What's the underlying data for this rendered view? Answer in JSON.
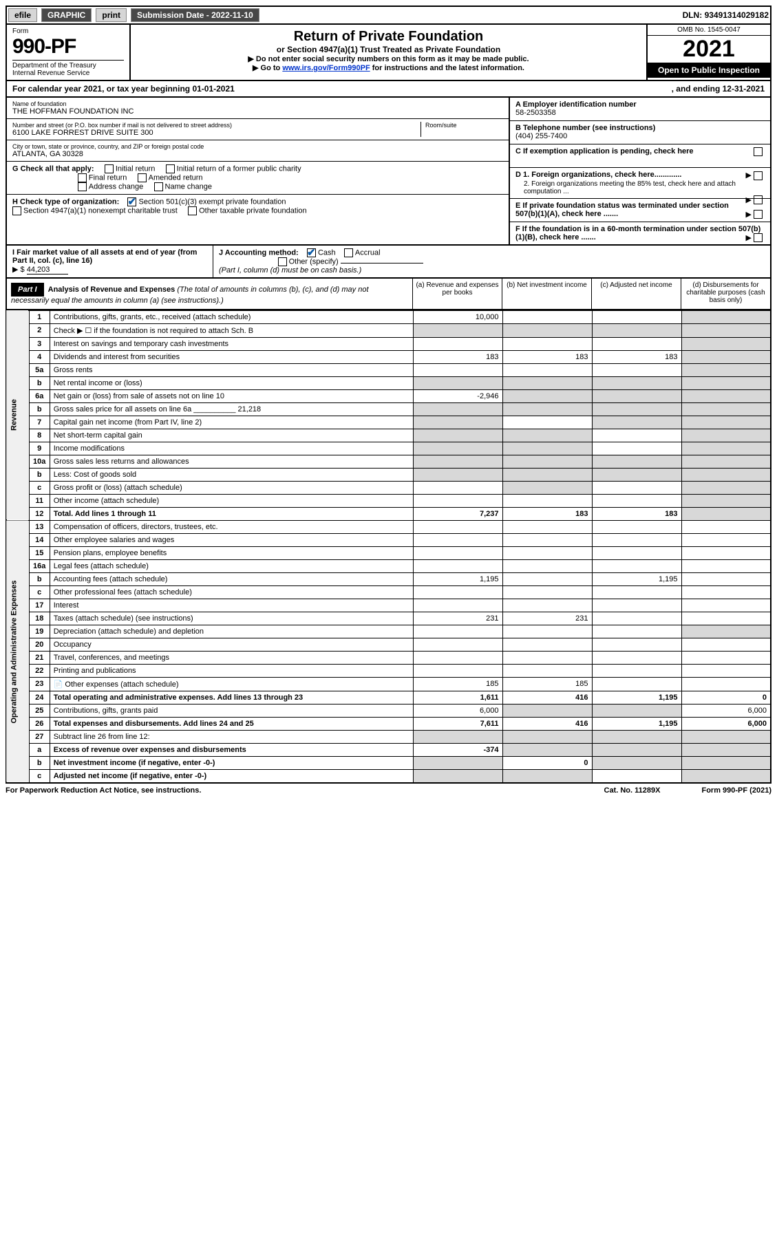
{
  "topbar": {
    "efile": "efile",
    "graphic": "GRAPHIC",
    "print": "print",
    "submission_label": "Submission Date - ",
    "submission_date": "2022-11-10",
    "dln_label": "DLN: ",
    "dln": "93491314029182"
  },
  "header": {
    "form_label": "Form",
    "form_number": "990-PF",
    "dept1": "Department of the Treasury",
    "dept2": "Internal Revenue Service",
    "title": "Return of Private Foundation",
    "subtitle": "or Section 4947(a)(1) Trust Treated as Private Foundation",
    "note1": "▶ Do not enter social security numbers on this form as it may be made public.",
    "note2_pre": "▶ Go to ",
    "note2_link": "www.irs.gov/Form990PF",
    "note2_post": " for instructions and the latest information.",
    "omb": "OMB No. 1545-0047",
    "year": "2021",
    "open": "Open to Public Inspection"
  },
  "cal": {
    "text": "For calendar year 2021, or tax year beginning 01-01-2021",
    "end": ", and ending 12-31-2021"
  },
  "entity": {
    "name_lbl": "Name of foundation",
    "name": "THE HOFFMAN FOUNDATION INC",
    "addr_lbl": "Number and street (or P.O. box number if mail is not delivered to street address)",
    "addr": "6100 LAKE FORREST DRIVE SUITE 300",
    "room_lbl": "Room/suite",
    "city_lbl": "City or town, state or province, country, and ZIP or foreign postal code",
    "city": "ATLANTA, GA  30328",
    "ein_lbl": "A Employer identification number",
    "ein": "58-2503358",
    "tel_lbl": "B Telephone number (see instructions)",
    "tel": "(404) 255-7400",
    "c_lbl": "C If exemption application is pending, check here",
    "d1": "D 1. Foreign organizations, check here.............",
    "d2": "2. Foreign organizations meeting the 85% test, check here and attach computation ...",
    "e_lbl": "E If private foundation status was terminated under section 507(b)(1)(A), check here .......",
    "f_lbl": "F If the foundation is in a 60-month termination under section 507(b)(1)(B), check here ......."
  },
  "g": {
    "lbl": "G Check all that apply:",
    "initial": "Initial return",
    "initial_former": "Initial return of a former public charity",
    "final": "Final return",
    "amended": "Amended return",
    "addr": "Address change",
    "name": "Name change"
  },
  "h": {
    "lbl": "H Check type of organization:",
    "s501": "Section 501(c)(3) exempt private foundation",
    "s4947": "Section 4947(a)(1) nonexempt charitable trust",
    "other": "Other taxable private foundation"
  },
  "i": {
    "lbl": "I Fair market value of all assets at end of year (from Part II, col. (c), line 16)",
    "val_pre": "▶ $",
    "val": "44,203"
  },
  "j": {
    "lbl": "J Accounting method:",
    "cash": "Cash",
    "accrual": "Accrual",
    "other": "Other (specify)",
    "note": "(Part I, column (d) must be on cash basis.)"
  },
  "part1": {
    "hdr": "Part I",
    "title": "Analysis of Revenue and Expenses",
    "title_note": "(The total of amounts in columns (b), (c), and (d) may not necessarily equal the amounts in column (a) (see instructions).)",
    "col_a": "(a) Revenue and expenses per books",
    "col_b": "(b) Net investment income",
    "col_c": "(c) Adjusted net income",
    "col_d": "(d) Disbursements for charitable purposes (cash basis only)"
  },
  "vlabels": {
    "rev": "Revenue",
    "exp": "Operating and Administrative Expenses"
  },
  "rows": [
    {
      "n": "1",
      "d": "Contributions, gifts, grants, etc., received (attach schedule)",
      "a": "10,000",
      "shade": [
        "d"
      ]
    },
    {
      "n": "2",
      "d": "Check ▶ ☐ if the foundation is not required to attach Sch. B",
      "shade": [
        "a",
        "b",
        "c",
        "d"
      ],
      "noval": true
    },
    {
      "n": "3",
      "d": "Interest on savings and temporary cash investments",
      "shade": [
        "d"
      ]
    },
    {
      "n": "4",
      "d": "Dividends and interest from securities",
      "a": "183",
      "b": "183",
      "c": "183",
      "shade": [
        "d"
      ]
    },
    {
      "n": "5a",
      "d": "Gross rents",
      "shade": [
        "d"
      ]
    },
    {
      "n": "b",
      "d": "Net rental income or (loss)",
      "shade": [
        "a",
        "b",
        "c",
        "d"
      ],
      "noval": true
    },
    {
      "n": "6a",
      "d": "Net gain or (loss) from sale of assets not on line 10",
      "a": "-2,946",
      "shade": [
        "b",
        "c",
        "d"
      ]
    },
    {
      "n": "b",
      "d": "Gross sales price for all assets on line 6a __________ 21,218",
      "shade": [
        "a",
        "b",
        "c",
        "d"
      ],
      "noval": true
    },
    {
      "n": "7",
      "d": "Capital gain net income (from Part IV, line 2)",
      "shade": [
        "a",
        "c",
        "d"
      ]
    },
    {
      "n": "8",
      "d": "Net short-term capital gain",
      "shade": [
        "a",
        "b",
        "d"
      ]
    },
    {
      "n": "9",
      "d": "Income modifications",
      "shade": [
        "a",
        "b",
        "d"
      ]
    },
    {
      "n": "10a",
      "d": "Gross sales less returns and allowances",
      "shade": [
        "a",
        "b",
        "c",
        "d"
      ],
      "noval": true
    },
    {
      "n": "b",
      "d": "Less: Cost of goods sold",
      "shade": [
        "a",
        "b",
        "c",
        "d"
      ],
      "noval": true
    },
    {
      "n": "c",
      "d": "Gross profit or (loss) (attach schedule)",
      "shade": [
        "b",
        "d"
      ]
    },
    {
      "n": "11",
      "d": "Other income (attach schedule)",
      "shade": [
        "d"
      ]
    },
    {
      "n": "12",
      "d": "Total. Add lines 1 through 11",
      "a": "7,237",
      "b": "183",
      "c": "183",
      "shade": [
        "d"
      ],
      "bold": true
    },
    {
      "n": "13",
      "d": "Compensation of officers, directors, trustees, etc."
    },
    {
      "n": "14",
      "d": "Other employee salaries and wages"
    },
    {
      "n": "15",
      "d": "Pension plans, employee benefits"
    },
    {
      "n": "16a",
      "d": "Legal fees (attach schedule)"
    },
    {
      "n": "b",
      "d": "Accounting fees (attach schedule)",
      "a": "1,195",
      "c": "1,195"
    },
    {
      "n": "c",
      "d": "Other professional fees (attach schedule)"
    },
    {
      "n": "17",
      "d": "Interest"
    },
    {
      "n": "18",
      "d": "Taxes (attach schedule) (see instructions)",
      "a": "231",
      "b": "231"
    },
    {
      "n": "19",
      "d": "Depreciation (attach schedule) and depletion",
      "shade": [
        "d"
      ]
    },
    {
      "n": "20",
      "d": "Occupancy"
    },
    {
      "n": "21",
      "d": "Travel, conferences, and meetings"
    },
    {
      "n": "22",
      "d": "Printing and publications"
    },
    {
      "n": "23",
      "d": "Other expenses (attach schedule)",
      "a": "185",
      "b": "185",
      "icon": true
    },
    {
      "n": "24",
      "d": "Total operating and administrative expenses. Add lines 13 through 23",
      "a": "1,611",
      "b": "416",
      "c": "1,195",
      "dd": "0",
      "bold": true
    },
    {
      "n": "25",
      "d": "Contributions, gifts, grants paid",
      "a": "6,000",
      "dd": "6,000",
      "shade": [
        "b",
        "c"
      ]
    },
    {
      "n": "26",
      "d": "Total expenses and disbursements. Add lines 24 and 25",
      "a": "7,611",
      "b": "416",
      "c": "1,195",
      "dd": "6,000",
      "bold": true
    },
    {
      "n": "27",
      "d": "Subtract line 26 from line 12:",
      "shade": [
        "a",
        "b",
        "c",
        "d"
      ],
      "noval": true
    },
    {
      "n": "a",
      "d": "Excess of revenue over expenses and disbursements",
      "a": "-374",
      "shade": [
        "b",
        "c",
        "d"
      ],
      "bold": true
    },
    {
      "n": "b",
      "d": "Net investment income (if negative, enter -0-)",
      "b": "0",
      "shade": [
        "a",
        "c",
        "d"
      ],
      "bold": true
    },
    {
      "n": "c",
      "d": "Adjusted net income (if negative, enter -0-)",
      "shade": [
        "a",
        "b",
        "d"
      ],
      "bold": true
    }
  ],
  "footer": {
    "left": "For Paperwork Reduction Act Notice, see instructions.",
    "mid": "Cat. No. 11289X",
    "right": "Form 990-PF (2021)"
  }
}
